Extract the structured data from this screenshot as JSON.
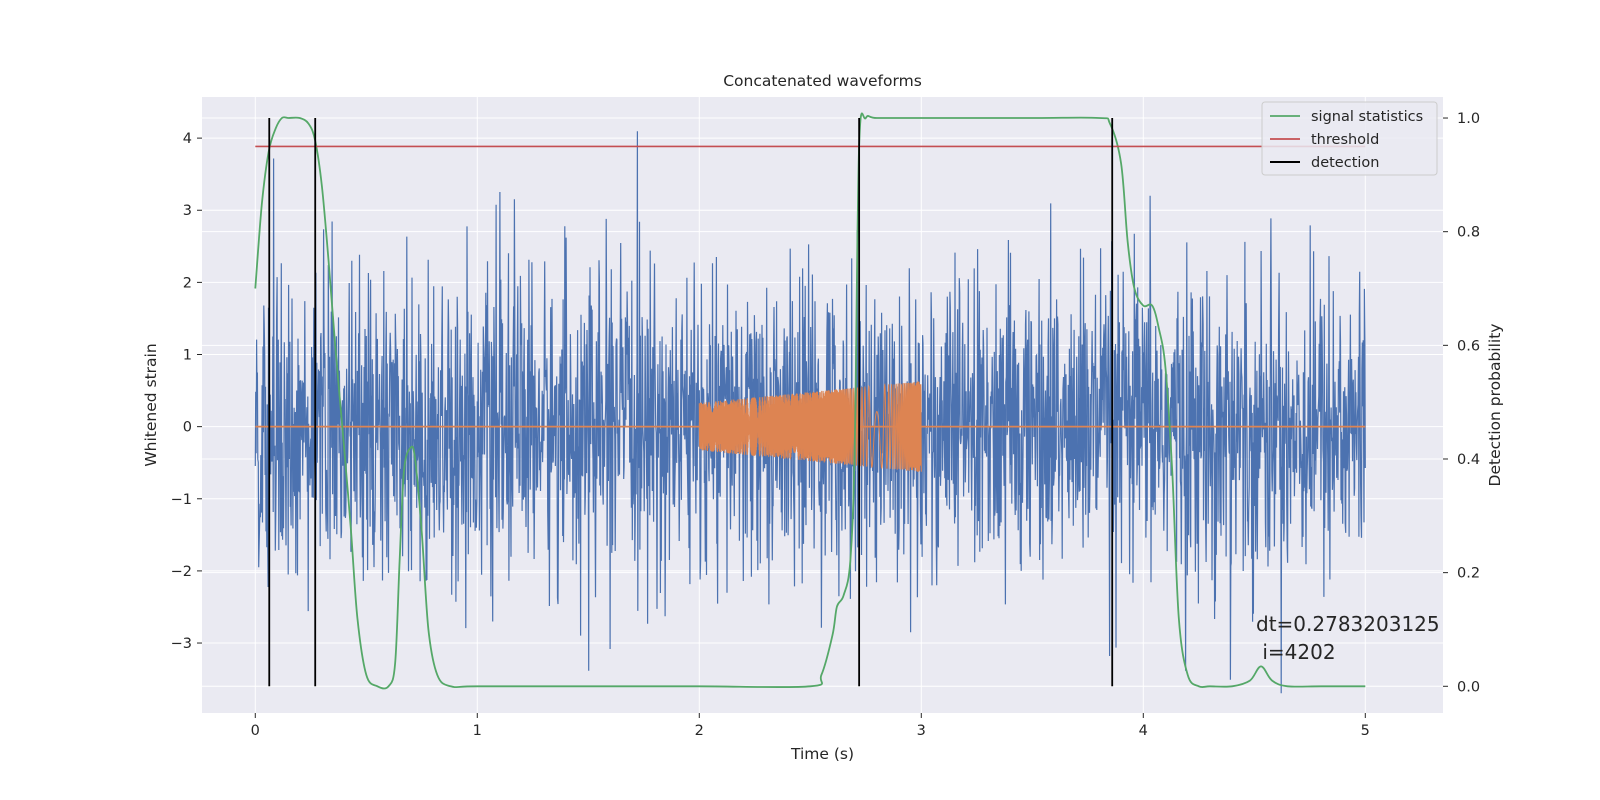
{
  "chart_data": {
    "type": "line",
    "title": "Concatenated waveforms",
    "xlabel": "Time (s)",
    "ylabel": "Whitened strain",
    "ylabel_right": "Detection probability",
    "xlim": [
      -0.24,
      5.35
    ],
    "ylim": [
      -3.97,
      4.57
    ],
    "ylim_right": [
      -0.047,
      1.037
    ],
    "x_ticks": [
      0,
      1,
      2,
      3,
      4,
      5
    ],
    "y_ticks": [
      -3,
      -2,
      -1,
      0,
      1,
      2,
      3,
      4
    ],
    "y_ticks_right": [
      0.0,
      0.2,
      0.4,
      0.6,
      0.8,
      1.0
    ],
    "x_tick_labels": [
      "0",
      "1",
      "2",
      "3",
      "4",
      "5"
    ],
    "y_tick_labels": [
      "−3",
      "−2",
      "−1",
      "0",
      "1",
      "2",
      "3",
      "4"
    ],
    "y_tick_labels_right": [
      "0.0",
      "0.2",
      "0.4",
      "0.6",
      "0.8",
      "1.0"
    ],
    "grid": true,
    "legend_position": "top-right",
    "colors": {
      "strain": "#4c72b0",
      "injection": "#dd8452",
      "signal_statistics": "#55a868",
      "threshold": "#c44e52",
      "detection": "#000000",
      "plot_background": "#eaeaf2",
      "grid": "#ffffff"
    },
    "series": [
      {
        "kind": "noise",
        "axis": "left",
        "x_range": [
          0,
          5
        ],
        "typical_amplitude": 1.2,
        "max_amplitude": 4.2
      },
      {
        "kind": "chirp",
        "axis": "left",
        "x_range": [
          2,
          3
        ],
        "amplitude_start": 0.33,
        "amplitude_end": 0.63
      },
      {
        "name": "signal statistics",
        "axis": "right",
        "x": [
          0,
          0.03,
          0.06,
          0.09,
          0.12,
          0.15,
          0.2,
          0.24,
          0.27,
          0.3,
          0.33,
          0.36,
          0.4,
          0.43,
          0.46,
          0.5,
          0.55,
          0.6,
          0.63,
          0.65,
          0.67,
          0.7,
          0.72,
          0.75,
          0.78,
          0.82,
          0.88,
          1.0,
          1.5,
          2.0,
          2.5,
          2.55,
          2.6,
          2.62,
          2.65,
          2.68,
          2.7,
          2.72,
          2.75,
          2.8,
          3.0,
          3.5,
          3.8,
          3.85,
          3.9,
          3.93,
          3.96,
          4.0,
          4.04,
          4.07,
          4.1,
          4.13,
          4.16,
          4.2,
          4.25,
          4.3,
          4.4,
          4.48,
          4.53,
          4.58,
          4.65,
          4.8,
          5.0
        ],
        "values": [
          0.7,
          0.85,
          0.94,
          0.98,
          1.0,
          1.0,
          1.0,
          0.99,
          0.96,
          0.88,
          0.75,
          0.6,
          0.42,
          0.28,
          0.12,
          0.02,
          0.0,
          0.0,
          0.04,
          0.22,
          0.38,
          0.42,
          0.4,
          0.27,
          0.1,
          0.02,
          0.0,
          0.0,
          0.0,
          0.0,
          0.0,
          0.02,
          0.09,
          0.14,
          0.16,
          0.22,
          0.42,
          0.95,
          1.0,
          1.0,
          1.0,
          1.0,
          1.0,
          0.99,
          0.92,
          0.78,
          0.7,
          0.67,
          0.67,
          0.63,
          0.56,
          0.38,
          0.12,
          0.02,
          0.0,
          0.0,
          0.0,
          0.01,
          0.035,
          0.01,
          0.0,
          0.0,
          0.0
        ]
      },
      {
        "name": "threshold",
        "axis": "right",
        "x": [
          0,
          5
        ],
        "values": [
          0.95,
          0.95
        ]
      },
      {
        "name": "detection",
        "axis": "right",
        "x": [
          0.063,
          0.27,
          2.72,
          3.86
        ],
        "values": [
          1.0,
          1.0,
          1.0,
          1.0
        ]
      }
    ],
    "legend": [
      "signal statistics",
      "threshold",
      "detection"
    ],
    "annotations": [
      "dt=0.2783203125",
      " i=4202"
    ]
  }
}
